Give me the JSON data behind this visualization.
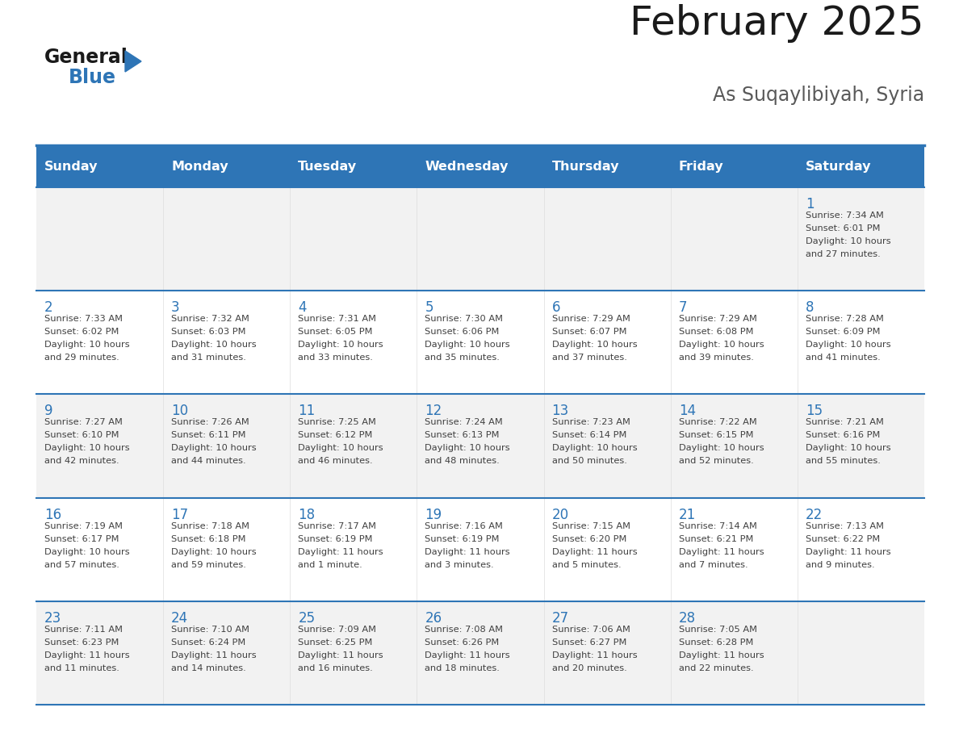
{
  "title": "February 2025",
  "subtitle": "As Suqaylibiyah, Syria",
  "days_of_week": [
    "Sunday",
    "Monday",
    "Tuesday",
    "Wednesday",
    "Thursday",
    "Friday",
    "Saturday"
  ],
  "header_bg": "#2E75B6",
  "header_text": "#FFFFFF",
  "row_bg_odd": "#F2F2F2",
  "row_bg_even": "#FFFFFF",
  "separator_color": "#2E75B6",
  "day_number_color": "#2E75B6",
  "cell_text_color": "#404040",
  "title_color": "#1A1A1A",
  "subtitle_color": "#595959",
  "calendar_data": {
    "1": {
      "sunrise": "7:34 AM",
      "sunset": "6:01 PM",
      "daylight": "10 hours and 27 minutes."
    },
    "2": {
      "sunrise": "7:33 AM",
      "sunset": "6:02 PM",
      "daylight": "10 hours and 29 minutes."
    },
    "3": {
      "sunrise": "7:32 AM",
      "sunset": "6:03 PM",
      "daylight": "10 hours and 31 minutes."
    },
    "4": {
      "sunrise": "7:31 AM",
      "sunset": "6:05 PM",
      "daylight": "10 hours and 33 minutes."
    },
    "5": {
      "sunrise": "7:30 AM",
      "sunset": "6:06 PM",
      "daylight": "10 hours and 35 minutes."
    },
    "6": {
      "sunrise": "7:29 AM",
      "sunset": "6:07 PM",
      "daylight": "10 hours and 37 minutes."
    },
    "7": {
      "sunrise": "7:29 AM",
      "sunset": "6:08 PM",
      "daylight": "10 hours and 39 minutes."
    },
    "8": {
      "sunrise": "7:28 AM",
      "sunset": "6:09 PM",
      "daylight": "10 hours and 41 minutes."
    },
    "9": {
      "sunrise": "7:27 AM",
      "sunset": "6:10 PM",
      "daylight": "10 hours and 42 minutes."
    },
    "10": {
      "sunrise": "7:26 AM",
      "sunset": "6:11 PM",
      "daylight": "10 hours and 44 minutes."
    },
    "11": {
      "sunrise": "7:25 AM",
      "sunset": "6:12 PM",
      "daylight": "10 hours and 46 minutes."
    },
    "12": {
      "sunrise": "7:24 AM",
      "sunset": "6:13 PM",
      "daylight": "10 hours and 48 minutes."
    },
    "13": {
      "sunrise": "7:23 AM",
      "sunset": "6:14 PM",
      "daylight": "10 hours and 50 minutes."
    },
    "14": {
      "sunrise": "7:22 AM",
      "sunset": "6:15 PM",
      "daylight": "10 hours and 52 minutes."
    },
    "15": {
      "sunrise": "7:21 AM",
      "sunset": "6:16 PM",
      "daylight": "10 hours and 55 minutes."
    },
    "16": {
      "sunrise": "7:19 AM",
      "sunset": "6:17 PM",
      "daylight": "10 hours and 57 minutes."
    },
    "17": {
      "sunrise": "7:18 AM",
      "sunset": "6:18 PM",
      "daylight": "10 hours and 59 minutes."
    },
    "18": {
      "sunrise": "7:17 AM",
      "sunset": "6:19 PM",
      "daylight": "11 hours and 1 minute."
    },
    "19": {
      "sunrise": "7:16 AM",
      "sunset": "6:19 PM",
      "daylight": "11 hours and 3 minutes."
    },
    "20": {
      "sunrise": "7:15 AM",
      "sunset": "6:20 PM",
      "daylight": "11 hours and 5 minutes."
    },
    "21": {
      "sunrise": "7:14 AM",
      "sunset": "6:21 PM",
      "daylight": "11 hours and 7 minutes."
    },
    "22": {
      "sunrise": "7:13 AM",
      "sunset": "6:22 PM",
      "daylight": "11 hours and 9 minutes."
    },
    "23": {
      "sunrise": "7:11 AM",
      "sunset": "6:23 PM",
      "daylight": "11 hours and 11 minutes."
    },
    "24": {
      "sunrise": "7:10 AM",
      "sunset": "6:24 PM",
      "daylight": "11 hours and 14 minutes."
    },
    "25": {
      "sunrise": "7:09 AM",
      "sunset": "6:25 PM",
      "daylight": "11 hours and 16 minutes."
    },
    "26": {
      "sunrise": "7:08 AM",
      "sunset": "6:26 PM",
      "daylight": "11 hours and 18 minutes."
    },
    "27": {
      "sunrise": "7:06 AM",
      "sunset": "6:27 PM",
      "daylight": "11 hours and 20 minutes."
    },
    "28": {
      "sunrise": "7:05 AM",
      "sunset": "6:28 PM",
      "daylight": "11 hours and 22 minutes."
    }
  },
  "week_layout": [
    [
      null,
      null,
      null,
      null,
      null,
      null,
      1
    ],
    [
      2,
      3,
      4,
      5,
      6,
      7,
      8
    ],
    [
      9,
      10,
      11,
      12,
      13,
      14,
      15
    ],
    [
      16,
      17,
      18,
      19,
      20,
      21,
      22
    ],
    [
      23,
      24,
      25,
      26,
      27,
      28,
      null
    ]
  ]
}
